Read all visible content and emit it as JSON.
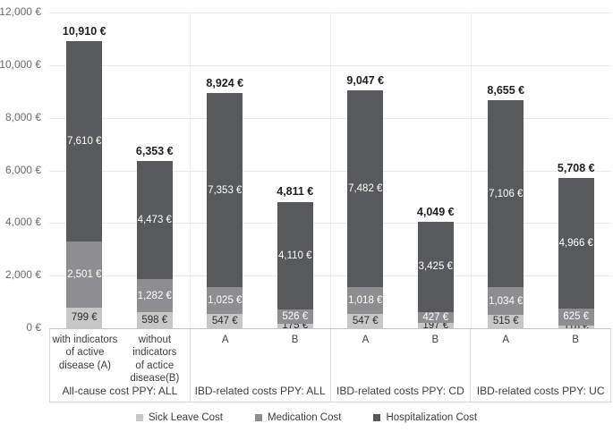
{
  "chart_data": {
    "type": "bar",
    "stacked": true,
    "title": "",
    "unit": "€",
    "ylim": [
      0,
      12000
    ],
    "grid": "horizontal",
    "legend_position": "bottom",
    "yticks": [
      {
        "value": 12000,
        "label": "12,000 €"
      },
      {
        "value": 10000,
        "label": "10,000 €"
      },
      {
        "value": 8000,
        "label": "8,000 €"
      },
      {
        "value": 6000,
        "label": "6,000 €"
      },
      {
        "value": 4000,
        "label": "4,000 €"
      },
      {
        "value": 2000,
        "label": "2,000 €"
      },
      {
        "value": 0,
        "label": "0 €"
      }
    ],
    "series": [
      {
        "name": "Sick Leave Cost",
        "color": "#c7c7c8",
        "label_color": "#2e2e2e"
      },
      {
        "name": "Medication Cost",
        "color": "#8e8e90",
        "label_color": "#ffffff"
      },
      {
        "name": "Hospitalization Cost",
        "color": "#58595b",
        "label_color": "#ffffff"
      }
    ],
    "groups": [
      {
        "label": "All-cause cost PPY: ALL",
        "bars": [
          {
            "category": "with indicators\nof active\ndisease (A)",
            "total": 10910,
            "total_label": "10,910 €",
            "values": [
              799,
              2501,
              7610
            ],
            "value_labels": [
              "799 €",
              "2,501 €",
              "7,610 €"
            ]
          },
          {
            "category": "without\nindicators\nof actice\ndisease(B)",
            "total": 6353,
            "total_label": "6,353 €",
            "values": [
              598,
              1282,
              4473
            ],
            "value_labels": [
              "598 €",
              "1,282 €",
              "4,473 €"
            ]
          }
        ]
      },
      {
        "label": "IBD-related costs PPY: ALL",
        "bars": [
          {
            "category": "A",
            "total": 8924,
            "total_label": "8,924 €",
            "values": [
              547,
              1025,
              7353
            ],
            "value_labels": [
              "547 €",
              "1,025 €",
              "7,353 €"
            ]
          },
          {
            "category": "B",
            "total": 4811,
            "total_label": "4,811 €",
            "values": [
              175,
              526,
              4110
            ],
            "value_labels": [
              "175 €",
              "526 €",
              "4,110 €"
            ]
          }
        ]
      },
      {
        "label": "IBD-related costs PPY: CD",
        "bars": [
          {
            "category": "A",
            "total": 9047,
            "total_label": "9,047 €",
            "values": [
              547,
              1018,
              7482
            ],
            "value_labels": [
              "547 €",
              "1,018 €",
              "7,482 €"
            ]
          },
          {
            "category": "B",
            "total": 4049,
            "total_label": "4,049 €",
            "values": [
              197,
              427,
              3425
            ],
            "value_labels": [
              "197 €",
              "427 €",
              "3,425 €"
            ]
          }
        ]
      },
      {
        "label": "IBD-related costs PPY: UC",
        "bars": [
          {
            "category": "A",
            "total": 8655,
            "total_label": "8,655 €",
            "values": [
              515,
              1034,
              7106
            ],
            "value_labels": [
              "515 €",
              "1,034 €",
              "7,106 €"
            ]
          },
          {
            "category": "B",
            "total": 5708,
            "total_label": "5,708 €",
            "values": [
              118,
              625,
              4966
            ],
            "value_labels": [
              "118 €",
              "625 €",
              "4,966 €"
            ]
          }
        ]
      }
    ]
  },
  "colors": {
    "background": "#ffffff",
    "gridline": "#eaeaea",
    "axis_line": "#c4c4c4",
    "separator": "#d9d9d9",
    "tick_text": "#6b6b6b",
    "category_text": "#404040",
    "total_text": "#1f1f1f"
  }
}
